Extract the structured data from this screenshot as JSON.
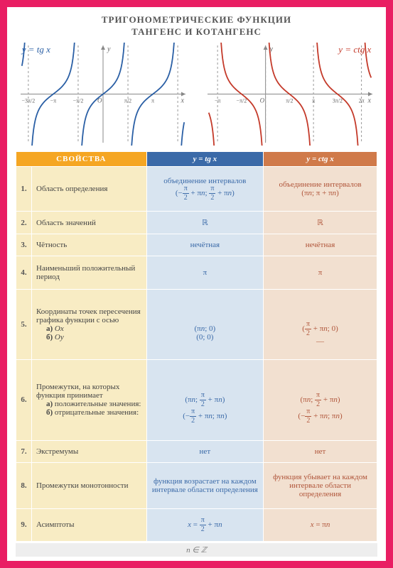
{
  "title_line1": "ТРИГОНОМЕТРИЧЕСКИЕ ФУНКЦИИ",
  "title_line2": "ТАНГЕНС И КОТАНГЕНС",
  "graph_tan_label": "y = tg x",
  "graph_cot_label": "y = ctg x",
  "headers": {
    "prop": "СВОЙСТВА",
    "tan": "y = tg x",
    "cot": "y = ctg x"
  },
  "colors": {
    "frame": "#e91e63",
    "tan_curve": "#2a5fa5",
    "cot_curve": "#c43a2a",
    "prop_header_bg": "#f5a623",
    "tan_header_bg": "#3b6aa8",
    "cot_header_bg": "#d07a4a",
    "prop_cell_bg": "#f8ecc4",
    "tan_cell_bg": "#d8e4f0",
    "cot_cell_bg": "#f2e0d0"
  },
  "tan_graph": {
    "asymptotes_x": [
      -4.712,
      -1.571,
      1.571,
      4.712
    ],
    "xticks": [
      {
        "x": -4.712,
        "label": "−3π/2"
      },
      {
        "x": -3.1416,
        "label": "−π"
      },
      {
        "x": -1.571,
        "label": "−π/2"
      },
      {
        "x": 0,
        "label": "O"
      },
      {
        "x": 1.571,
        "label": "π/2"
      },
      {
        "x": 3.1416,
        "label": "π"
      }
    ],
    "xrange": [
      -5.2,
      5.2
    ],
    "yrange": [
      -4,
      4
    ]
  },
  "cot_graph": {
    "asymptotes_x": [
      -3.1416,
      0,
      3.1416,
      6.283
    ],
    "xticks": [
      {
        "x": -3.1416,
        "label": "−π"
      },
      {
        "x": -1.571,
        "label": "−π/2"
      },
      {
        "x": 0,
        "label": "O"
      },
      {
        "x": 1.571,
        "label": "π/2"
      },
      {
        "x": 3.1416,
        "label": "π"
      },
      {
        "x": 4.712,
        "label": "3π/2"
      },
      {
        "x": 6.283,
        "label": "2π"
      }
    ],
    "xrange": [
      -3.8,
      7.0
    ],
    "yrange": [
      -4,
      4
    ]
  },
  "rows": [
    {
      "n": "1.",
      "prop": "Область определения",
      "tan": "объединение интервалов<br>(−<span class='frac'><span class='t'>π</span><span class='b'>2</span></span> + π<i>n</i>; <span class='frac'><span class='t'>π</span><span class='b'>2</span></span> + π<i>n</i>)",
      "cot": "объединение интервалов<br>(π<i>n</i>; π + π<i>n</i>)"
    },
    {
      "n": "2.",
      "prop": "Область значений",
      "tan": "ℝ",
      "cot": "ℝ"
    },
    {
      "n": "3.",
      "prop": "Чётность",
      "tan": "нечётная",
      "cot": "нечётная"
    },
    {
      "n": "4.",
      "prop": "Наименьший положительный период",
      "tan": "π",
      "cot": "π"
    },
    {
      "n": "5.",
      "prop": "Координаты точек пересечения графика функции с осью<br><span class='sub'><b>а)</b> <i>Ox</i></span><br><span class='sub'><b>б)</b> <i>Oy</i></span>",
      "tan": "<br><br>(π<i>n</i>; 0)<br>(0; 0)",
      "cot": "<br><br>(<span class='frac'><span class='t'>π</span><span class='b'>2</span></span> + π<i>n</i>; 0)<br>—"
    },
    {
      "n": "6.",
      "prop": "Промежутки, на которых функция принимает<br><span class='sub'><b>а)</b> положительные значения:</span><br><span class='sub'><b>б)</b> отрицательные значения:</span>",
      "tan": "<br><br>(π<i>n</i>; <span class='frac'><span class='t'>π</span><span class='b'>2</span></span> + π<i>n</i>)<br>(−<span class='frac'><span class='t'>π</span><span class='b'>2</span></span> + π<i>n</i>; π<i>n</i>)",
      "cot": "<br><br>(π<i>n</i>; <span class='frac'><span class='t'>π</span><span class='b'>2</span></span> + π<i>n</i>)<br>(−<span class='frac'><span class='t'>π</span><span class='b'>2</span></span> + π<i>n</i>; π<i>n</i>)"
    },
    {
      "n": "7.",
      "prop": "Экстремумы",
      "tan": "нет",
      "cot": "нет"
    },
    {
      "n": "8.",
      "prop": "Промежутки монотонности",
      "tan": "функция возрастает на каждом интервале области определения",
      "cot": "функция убывает на каждом интервале области определения"
    },
    {
      "n": "9.",
      "prop": "Асимптоты",
      "tan": "<i>x</i> = <span class='frac'><span class='t'>π</span><span class='b'>2</span></span> + π<i>n</i>",
      "cot": "<i>x</i> = π<i>n</i>"
    }
  ],
  "footer": "n ∈ ℤ"
}
